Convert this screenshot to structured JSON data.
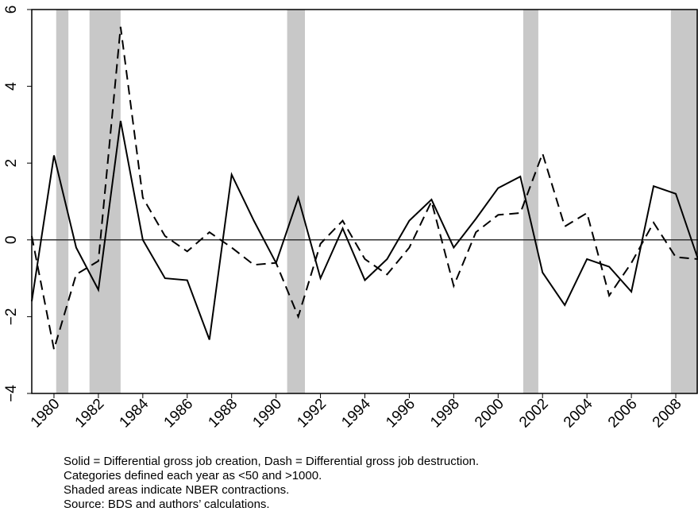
{
  "chart_data": {
    "type": "line",
    "x": [
      1979,
      1980,
      1981,
      1982,
      1983,
      1984,
      1985,
      1986,
      1987,
      1988,
      1989,
      1990,
      1991,
      1992,
      1993,
      1994,
      1995,
      1996,
      1997,
      1998,
      1999,
      2000,
      2001,
      2002,
      2003,
      2004,
      2005,
      2006,
      2007,
      2008,
      2009
    ],
    "series": [
      {
        "color": "#000000",
        "dash": "solid",
        "values": [
          -1.6,
          2.2,
          -0.2,
          -1.3,
          3.1,
          0.0,
          -1.0,
          -1.05,
          -2.6,
          1.7,
          0.5,
          -0.6,
          1.1,
          -1.0,
          0.3,
          -1.05,
          -0.5,
          0.5,
          1.05,
          -0.2,
          0.55,
          1.35,
          1.65,
          -0.85,
          -1.7,
          -0.5,
          -0.7,
          -1.35,
          1.4,
          1.2,
          -0.5
        ]
      },
      {
        "color": "#000000",
        "dash": "dashed",
        "values": [
          0.1,
          -2.85,
          -0.9,
          -0.55,
          5.55,
          1.1,
          0.1,
          -0.3,
          0.2,
          -0.2,
          -0.65,
          -0.6,
          -2.0,
          -0.1,
          0.5,
          -0.5,
          -0.9,
          -0.2,
          1.0,
          -1.2,
          0.2,
          0.65,
          0.7,
          2.25,
          0.35,
          0.7,
          -1.45,
          -0.6,
          0.45,
          -0.45,
          -0.5
        ]
      }
    ],
    "xlim": [
      1979,
      2009
    ],
    "xticks": [
      1980,
      1982,
      1984,
      1986,
      1988,
      1990,
      1992,
      1994,
      1996,
      1998,
      2000,
      2002,
      2004,
      2006,
      2008
    ],
    "ylim": [
      -4,
      6
    ],
    "yticks": [
      {
        "value": -4,
        "label": "−4"
      },
      {
        "value": -2,
        "label": "−2"
      },
      0,
      2,
      4,
      6
    ],
    "reference_line": 0,
    "shaded_regions": [
      [
        1980.1,
        1980.65
      ],
      [
        1981.6,
        1983.0
      ],
      [
        1990.5,
        1991.3
      ],
      [
        2001.13,
        2001.81
      ],
      [
        2007.78,
        2009
      ]
    ],
    "shade_color": "#c8c8c8",
    "notes": [
      "Solid = Differential gross job creation, Dash = Differential gross job destruction.",
      "Categories defined each year as <50 and >1000.",
      "Shaded areas indicate NBER contractions.",
      "Source: BDS and authors’ calculations."
    ]
  }
}
